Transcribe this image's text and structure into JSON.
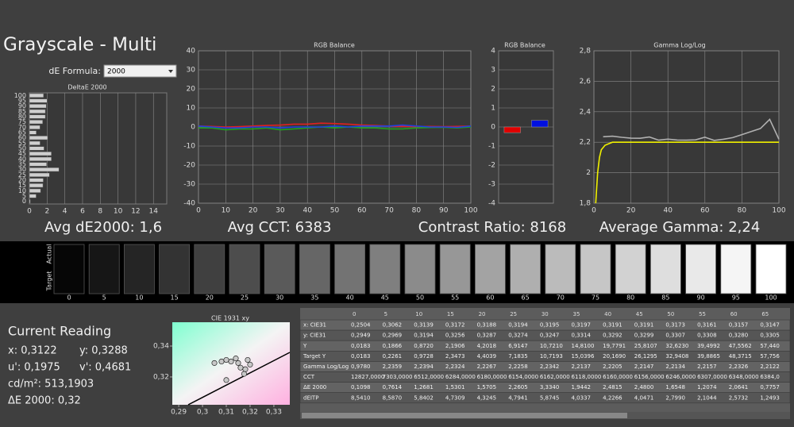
{
  "header": {
    "title": "Grayscale - Multi"
  },
  "de_formula": {
    "label": "dE Formula:",
    "value": "2000"
  },
  "stats": [
    "Avg dE2000: 1,6",
    "Avg CCT: 6383",
    "Contrast Ratio: 8168",
    "Average Gamma: 2,24"
  ],
  "chart_data": [
    {
      "type": "bar",
      "orientation": "horizontal",
      "title": "DeltaE 2000",
      "color": "#cfcfcf",
      "categories": [
        0,
        5,
        10,
        15,
        20,
        25,
        30,
        35,
        40,
        45,
        50,
        55,
        60,
        65,
        70,
        75,
        80,
        85,
        90,
        95,
        100
      ],
      "values": [
        0.1098,
        0.7614,
        1.2681,
        1.5301,
        1.5705,
        2.2605,
        3.334,
        1.9442,
        2.4815,
        2.48,
        1.6548,
        1.2074,
        2.0641,
        0.7757,
        1.2,
        1.5,
        1.8,
        1.8,
        1.9,
        2.0,
        1.6
      ],
      "xlim": [
        0,
        15.5
      ],
      "xticks": [
        0,
        2,
        4,
        6,
        8,
        10,
        12,
        14
      ],
      "grid": true
    },
    {
      "type": "line",
      "title": "RGB Balance",
      "x": [
        0,
        5,
        10,
        15,
        20,
        25,
        30,
        35,
        40,
        45,
        50,
        55,
        60,
        65,
        70,
        75,
        80,
        85,
        90,
        95,
        100
      ],
      "series": [
        {
          "color": "#e02020",
          "values": [
            0.5,
            0.3,
            0,
            0.2,
            0.5,
            0.8,
            1,
            1.5,
            1.5,
            2,
            1.8,
            1.5,
            1,
            0.8,
            0.5,
            0.3,
            0.2,
            0.3,
            0.2,
            0.3,
            0.5
          ]
        },
        {
          "color": "#20a020",
          "values": [
            -0.5,
            -0.5,
            -1.5,
            -1,
            -1,
            -0.5,
            -1.5,
            -1,
            -0.5,
            0,
            -0.5,
            0,
            -0.5,
            -0.5,
            -1,
            -1,
            -0.5,
            -0.3,
            -0.2,
            -0.5,
            0
          ]
        },
        {
          "color": "#2040e0",
          "values": [
            0.5,
            0,
            -0.5,
            -0.5,
            0,
            0,
            -0.5,
            0,
            0,
            0,
            0.5,
            0,
            0.5,
            0.5,
            0.5,
            1,
            0.5,
            0,
            0,
            -0.2,
            0.5
          ]
        }
      ],
      "xlim": [
        0,
        100
      ],
      "xticks": [
        0,
        10,
        20,
        30,
        40,
        50,
        60,
        70,
        80,
        90,
        100
      ],
      "ylim": [
        -40,
        40
      ],
      "yticks": [
        -40,
        -30,
        -20,
        -10,
        0,
        10,
        20,
        30,
        40
      ],
      "grid": true
    },
    {
      "type": "bar",
      "title": "RGB Balance",
      "series": [
        {
          "color": "#e00000",
          "values": [
            -0.3
          ]
        },
        {
          "color": "#0010e0",
          "values": [
            0.35
          ]
        }
      ],
      "ylim": [
        -4,
        4
      ],
      "yticks": [
        -4,
        -3,
        -2,
        -1,
        0,
        1,
        2,
        3,
        4
      ],
      "grid": true
    },
    {
      "type": "line",
      "title": "Gamma Log/Log",
      "series": [
        {
          "color": "#b0b0b0",
          "x": [
            5,
            10,
            15,
            20,
            25,
            30,
            35,
            40,
            45,
            50,
            55,
            60,
            65,
            70,
            75,
            80,
            85,
            90,
            95,
            100
          ],
          "values": [
            2.2359,
            2.2394,
            2.2324,
            2.2267,
            2.2258,
            2.2342,
            2.2137,
            2.2205,
            2.2147,
            2.2134,
            2.2157,
            2.2326,
            2.2122,
            2.22,
            2.23,
            2.25,
            2.27,
            2.29,
            2.35,
            2.22
          ]
        },
        {
          "color": "#f0f000",
          "x": [
            1,
            2,
            3,
            4,
            6,
            8,
            10,
            100
          ],
          "values": [
            1.8,
            2.0,
            2.1,
            2.15,
            2.18,
            2.19,
            2.2,
            2.2
          ]
        }
      ],
      "xlim": [
        0,
        100
      ],
      "xticks": [
        0,
        20,
        40,
        60,
        80,
        100
      ],
      "ylim": [
        1.8,
        2.8
      ],
      "yticks": [
        {
          "value": 1.8,
          "label": "1,8"
        },
        2,
        {
          "value": 2.2,
          "label": "2,2"
        },
        {
          "value": 2.4,
          "label": "2,4"
        },
        {
          "value": 2.6,
          "label": "2,6"
        },
        {
          "value": 2.8,
          "label": "2,8"
        }
      ],
      "grid": true
    },
    {
      "type": "scatter",
      "title": "CIE 1931 xy",
      "color": "#c8c8c8",
      "x": [
        0.305,
        0.308,
        0.31,
        0.312,
        0.315,
        0.316,
        0.318,
        0.32,
        0.319,
        0.3175,
        0.314,
        0.31
      ],
      "values": [
        0.329,
        0.33,
        0.331,
        0.33,
        0.329,
        0.326,
        0.325,
        0.328,
        0.331,
        0.322,
        0.332,
        0.318
      ],
      "xlim": [
        0.2873,
        0.3367
      ],
      "xticks": [
        {
          "value": 0.29,
          "label": "0,29"
        },
        {
          "value": 0.3,
          "label": "0,3"
        },
        {
          "value": 0.31,
          "label": "0,31"
        },
        {
          "value": 0.32,
          "label": "0,32"
        },
        {
          "value": 0.33,
          "label": "0,33"
        }
      ],
      "ylim": [
        0.302,
        0.3554
      ],
      "yticks": [
        {
          "value": 0.32,
          "label": "0,32"
        },
        {
          "value": 0.34,
          "label": "0,34"
        }
      ]
    }
  ],
  "patches": {
    "row_labels": [
      "Actual",
      "Target"
    ],
    "levels": [
      0,
      5,
      10,
      15,
      20,
      25,
      30,
      35,
      40,
      45,
      50,
      55,
      60,
      65,
      70,
      75,
      80,
      85,
      90,
      95,
      100
    ]
  },
  "reading": {
    "title": "Current Reading",
    "lines": [
      [
        "x: 0,3122",
        "y: 0,3288"
      ],
      [
        "u': 0,1975",
        "v': 0,4681"
      ],
      [
        "cd/m²: 513,1903"
      ],
      [
        "ΔE 2000: 0,32"
      ]
    ]
  },
  "table": {
    "header": [
      "",
      "0",
      "5",
      "10",
      "15",
      "20",
      "25",
      "30",
      "35",
      "40",
      "45",
      "50",
      "55",
      "60",
      "65"
    ],
    "rows": [
      [
        "x: CIE31",
        "0,2504",
        "0,3062",
        "0,3139",
        "0,3172",
        "0,3188",
        "0,3194",
        "0,3195",
        "0,3197",
        "0,3191",
        "0,3191",
        "0,3173",
        "0,3161",
        "0,3157",
        "0,3147"
      ],
      [
        "y: CIE31",
        "0,2949",
        "0,2969",
        "0,3194",
        "0,3256",
        "0,3287",
        "0,3274",
        "0,3247",
        "0,3314",
        "0,3292",
        "0,3299",
        "0,3307",
        "0,3308",
        "0,3280",
        "0,3305"
      ],
      [
        "Y",
        "0,0183",
        "0,1866",
        "0,8720",
        "2,1906",
        "4,2018",
        "6,9147",
        "10,7210",
        "14,8100",
        "19,7791",
        "25,8107",
        "32,6230",
        "39,4992",
        "47,5562",
        "57,440"
      ],
      [
        "Target Y",
        "0,0183",
        "0,2261",
        "0,9728",
        "2,3473",
        "4,4039",
        "7,1835",
        "10,7193",
        "15,0396",
        "20,1690",
        "26,1295",
        "32,9408",
        "39,8865",
        "48,3715",
        "57,756"
      ],
      [
        "Gamma Log/Log",
        "0,9780",
        "2,2359",
        "2,2394",
        "2,2324",
        "2,2267",
        "2,2258",
        "2,2342",
        "2,2137",
        "2,2205",
        "2,2147",
        "2,2134",
        "2,2157",
        "2,2326",
        "2,2122"
      ],
      [
        "CCT",
        "12827,0000",
        "7303,0000",
        "6512,0000",
        "6284,0000",
        "6180,0000",
        "6154,0000",
        "6162,0000",
        "6118,0000",
        "6160,0000",
        "6156,0000",
        "6246,0000",
        "6307,0000",
        "6348,0000",
        "6384,0"
      ],
      [
        "ΔE 2000",
        "0,1098",
        "0,7614",
        "1,2681",
        "1,5301",
        "1,5705",
        "2,2605",
        "3,3340",
        "1,9442",
        "2,4815",
        "2,4800",
        "1,6548",
        "1,2074",
        "2,0641",
        "0,7757"
      ],
      [
        "dEITP",
        "8,5410",
        "8,5870",
        "5,8402",
        "4,7309",
        "4,3245",
        "4,7941",
        "5,8745",
        "4,0337",
        "4,2266",
        "4,0471",
        "2,7990",
        "2,1044",
        "2,5732",
        "1,2493"
      ]
    ]
  }
}
